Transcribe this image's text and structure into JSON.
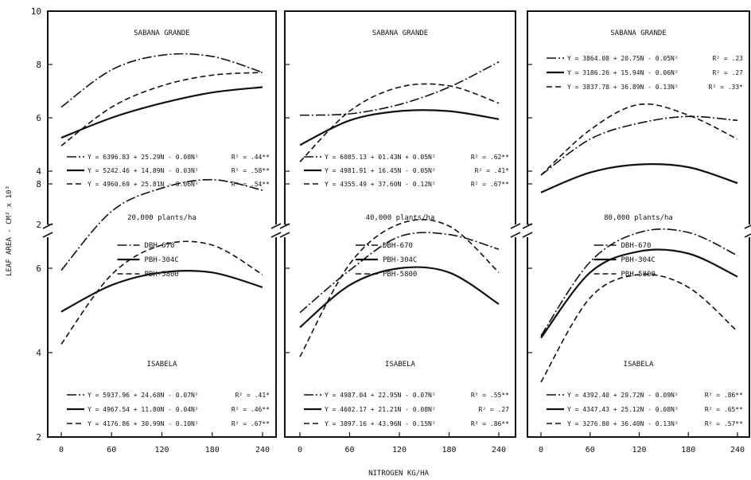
{
  "figure": {
    "ylabel": "LEAF AREA - CM² x 10³",
    "xlabel": "NITROGEN KG/HA"
  },
  "chart_data": {
    "type": "line",
    "x": [
      0,
      60,
      120,
      180,
      240
    ],
    "xticks": [
      "0",
      "60",
      "120",
      "180",
      "240"
    ],
    "xlim": [
      0,
      240
    ],
    "series_names": [
      "DBH-670",
      "PBH-304C",
      "PBH-5800"
    ],
    "location_labels": [
      "SABANA GRANDE",
      "ISABELA"
    ],
    "top_yticks": [
      "10",
      "8",
      "6",
      "4",
      "2"
    ],
    "top_ylim": [
      2,
      10
    ],
    "bottom_yticks": [
      "8",
      "6",
      "4",
      "2"
    ],
    "bottom_ylim": [
      2,
      9.5
    ],
    "panels": [
      {
        "density": "20,000 plants/ha",
        "sabana_grande": {
          "series": [
            {
              "name": "DBH-670",
              "values": [
                6.4,
                7.8,
                8.35,
                8.3,
                7.7
              ]
            },
            {
              "name": "PBH-304C",
              "values": [
                5.25,
                6.0,
                6.55,
                6.95,
                7.15
              ]
            },
            {
              "name": "PBH-5800",
              "values": [
                4.95,
                6.4,
                7.2,
                7.6,
                7.7
              ]
            }
          ],
          "equations": [
            {
              "text": "Y = 6396.83 + 25.29N - 0.08N²",
              "r2": "R² = .44**"
            },
            {
              "text": "Y = 5242.46 + 14.89N - 0.03N²",
              "r2": "R² = .58**"
            },
            {
              "text": "Y = 4960.69 + 25.81N - 0.06N²",
              "r2": "R² = .54**"
            }
          ]
        },
        "isabela": {
          "series": [
            {
              "name": "DBH-670",
              "values": [
                5.95,
                7.35,
                7.9,
                8.1,
                7.85
              ]
            },
            {
              "name": "PBH-304C",
              "values": [
                4.97,
                5.6,
                5.9,
                5.9,
                5.55
              ]
            },
            {
              "name": "PBH-5800",
              "values": [
                4.2,
                5.85,
                6.55,
                6.55,
                5.85
              ]
            }
          ],
          "equations": [
            {
              "text": "Y = 5937.96 + 24.68N - 0.07N²",
              "r2": "R² = .41*"
            },
            {
              "text": "Y = 4967.54 + 11.80N - 0.04N²",
              "r2": "R² = .46**"
            },
            {
              "text": "Y = 4176.86 + 30.99N - 0.10N²",
              "r2": "R² = .67**"
            }
          ]
        }
      },
      {
        "density": "40,000 plants/ha",
        "sabana_grande": {
          "series": [
            {
              "name": "DBH-670",
              "values": [
                6.1,
                6.15,
                6.5,
                7.15,
                8.1
              ]
            },
            {
              "name": "PBH-304C",
              "values": [
                4.98,
                5.9,
                6.25,
                6.25,
                5.95
              ]
            },
            {
              "name": "PBH-5800",
              "values": [
                4.35,
                6.25,
                7.15,
                7.2,
                6.55
              ]
            }
          ],
          "equations": [
            {
              "text": "Y = 6085.13 + 01.43N + 0.05N²",
              "r2": "R² = .62**"
            },
            {
              "text": "Y = 4981.91 + 16.45N - 0.05N²",
              "r2": "R² = .41*"
            },
            {
              "text": "Y = 4355.49 + 37.60N - 0.12N²",
              "r2": "R² = .67**"
            }
          ]
        },
        "isabela": {
          "series": [
            {
              "name": "DBH-670",
              "values": [
                4.95,
                5.95,
                6.75,
                6.8,
                6.45
              ]
            },
            {
              "name": "PBH-304C",
              "values": [
                4.6,
                5.6,
                6.0,
                5.9,
                5.15
              ]
            },
            {
              "name": "PBH-5800",
              "values": [
                3.9,
                6.1,
                7.05,
                7.0,
                5.9
              ]
            }
          ],
          "equations": [
            {
              "text": "Y = 4987.04 + 22.95N - 0.07N²",
              "r2": "R² = .55**"
            },
            {
              "text": "Y = 4602.17 + 21.21N - 0.08N²",
              "r2": "R² = .27"
            },
            {
              "text": "Y = 3897.16 + 43.96N - 0.15N²",
              "r2": "R² = .86**"
            }
          ]
        }
      },
      {
        "density": "80,000 plants/ha",
        "sabana_grande": {
          "series": [
            {
              "name": "DBH-670",
              "values": [
                3.85,
                5.2,
                5.8,
                6.05,
                5.9
              ]
            },
            {
              "name": "PBH-304C",
              "values": [
                3.2,
                3.95,
                4.25,
                4.15,
                3.55
              ]
            },
            {
              "name": "PBH-5800",
              "values": [
                3.85,
                5.55,
                6.5,
                6.1,
                5.2
              ]
            }
          ],
          "equations": [
            {
              "text": "Y = 3864.08 + 20.75N - 0.05N²",
              "r2": "R² = .23"
            },
            {
              "text": "Y = 3186.26 + 15.94N - 0.06N²",
              "r2": "R² = .27"
            },
            {
              "text": "Y = 3837.78 + 36.89N - 0.13N²",
              "r2": "R² = .33*"
            }
          ]
        },
        "isabela": {
          "series": [
            {
              "name": "DBH-670",
              "values": [
                4.4,
                6.15,
                6.85,
                6.85,
                6.3
              ]
            },
            {
              "name": "PBH-304C",
              "values": [
                4.35,
                5.9,
                6.4,
                6.35,
                5.8
              ]
            },
            {
              "name": "PBH-5800",
              "values": [
                3.3,
                5.3,
                5.85,
                5.55,
                4.5
              ]
            }
          ],
          "equations": [
            {
              "text": "Y = 4392.40 + 29.72N - 0.09N²",
              "r2": "R² = .86**"
            },
            {
              "text": "Y = 4347.43 + 25.12N - 0.08N²",
              "r2": "R² = .65**"
            },
            {
              "text": "Y = 3276.80 + 36.40N - 0.13N²",
              "r2": "R² = .57**"
            }
          ]
        }
      }
    ]
  }
}
